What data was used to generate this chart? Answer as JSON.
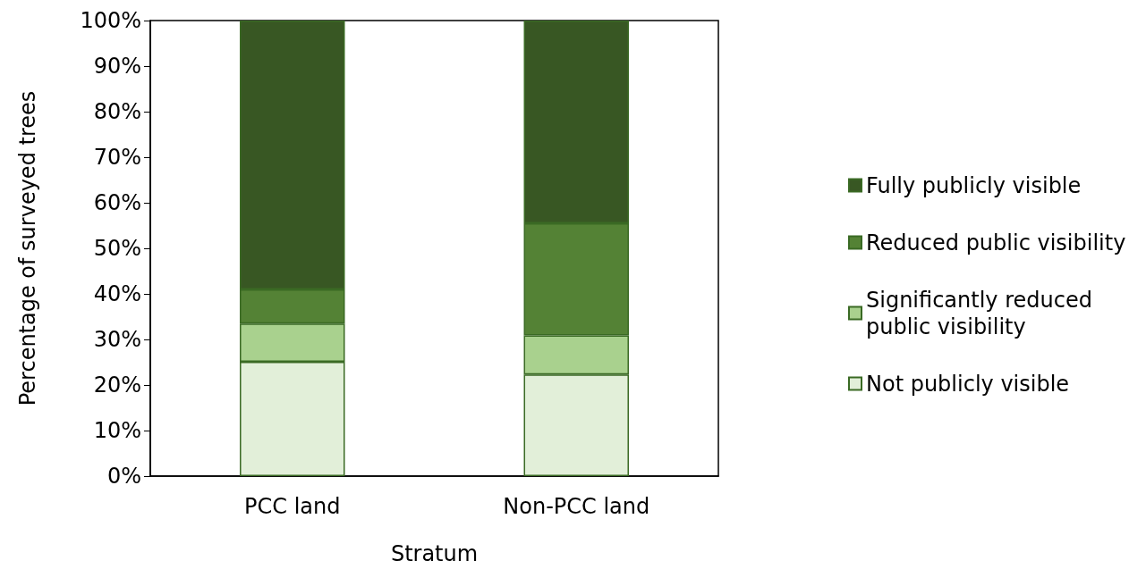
{
  "chart_data": {
    "type": "bar",
    "stacked": true,
    "xlabel": "Stratum",
    "ylabel": "Percentage of surveyed trees",
    "categories": [
      "PCC land",
      "Non-PCC land"
    ],
    "series": [
      {
        "name": "Not publicly visible",
        "color": "#e2efd9",
        "values": [
          25.1,
          22.3
        ]
      },
      {
        "name": "Significantly reduced public visibility",
        "color": "#a9d18e",
        "values": [
          8.4,
          8.6
        ]
      },
      {
        "name": "Reduced public visibility",
        "color": "#548235",
        "values": [
          7.5,
          24.6
        ]
      },
      {
        "name": "Fully publicly visible",
        "color": "#385723",
        "values": [
          59.0,
          44.5
        ]
      }
    ],
    "ylim": [
      0,
      100
    ],
    "yticks": [
      {
        "value": 0,
        "label": "0%"
      },
      {
        "value": 10,
        "label": "10%"
      },
      {
        "value": 20,
        "label": "20%"
      },
      {
        "value": 30,
        "label": "30%"
      },
      {
        "value": 40,
        "label": "40%"
      },
      {
        "value": 50,
        "label": "50%"
      },
      {
        "value": 60,
        "label": "60%"
      },
      {
        "value": 70,
        "label": "70%"
      },
      {
        "value": 80,
        "label": "80%"
      },
      {
        "value": 90,
        "label": "90%"
      },
      {
        "value": 100,
        "label": "100%"
      }
    ],
    "grid": false,
    "legend": "right"
  }
}
